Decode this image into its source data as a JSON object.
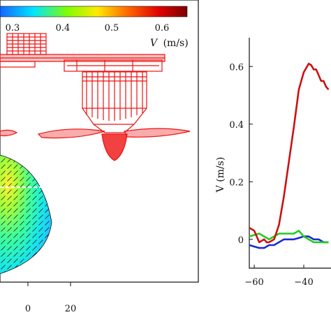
{
  "colorbar": {
    "ticks": [
      "0.3",
      "0.4",
      "0.5",
      "0.6"
    ],
    "label": "V (m/s)",
    "label_var": "V",
    "label_unit": "(m/s)",
    "colors": [
      "#1565ff",
      "#00e5ff",
      "#7fff00",
      "#ffea00",
      "#ff6a00",
      "#e00000",
      "#7a0000"
    ]
  },
  "left_panel": {
    "x_ticks": [
      "0",
      "20"
    ],
    "impeller_color": "#ee1111"
  },
  "chart_data": {
    "type": "line",
    "ylabel": "V (m/s)",
    "xlabel": "",
    "xlim": [
      -62,
      -29
    ],
    "ylim": [
      -0.1,
      0.7
    ],
    "x_ticks": [
      "−60",
      "−40"
    ],
    "y_ticks": [
      "0",
      "0.2",
      "0.4",
      "0.6"
    ],
    "grid": false,
    "series": [
      {
        "color": "#cc1111",
        "x": [
          -62,
          -60,
          -58,
          -56,
          -55,
          -54,
          -52,
          -50,
          -48,
          -46,
          -44,
          -42,
          -40,
          -38,
          -37,
          -36,
          -35,
          -34,
          -33,
          -32,
          -31,
          -30
        ],
        "y": [
          0.04,
          0.03,
          -0.01,
          0.0,
          -0.01,
          -0.01,
          0.0,
          0.05,
          0.15,
          0.27,
          0.39,
          0.52,
          0.58,
          0.61,
          0.605,
          0.59,
          0.59,
          0.57,
          0.55,
          0.55,
          0.53,
          0.52
        ]
      },
      {
        "color": "#22cc22",
        "x": [
          -62,
          -58,
          -56,
          -54,
          -52,
          -50,
          -48,
          -46,
          -44,
          -42,
          -40,
          -38,
          -36,
          -34,
          -32,
          -30
        ],
        "y": [
          0.01,
          0.02,
          0.01,
          0.0,
          0.01,
          0.02,
          0.02,
          0.02,
          0.02,
          0.03,
          0.01,
          0.0,
          -0.01,
          -0.01,
          -0.01,
          -0.01
        ]
      },
      {
        "color": "#1a2ccc",
        "x": [
          -62,
          -58,
          -56,
          -54,
          -52,
          -50,
          -48,
          -46,
          -44,
          -42,
          -40,
          -38,
          -36,
          -34,
          -32,
          -30
        ],
        "y": [
          -0.02,
          -0.03,
          -0.03,
          -0.02,
          -0.02,
          -0.01,
          0.0,
          0.0,
          0.0,
          0.005,
          0.01,
          0.01,
          0.0,
          0.0,
          -0.01,
          -0.01
        ]
      }
    ]
  }
}
